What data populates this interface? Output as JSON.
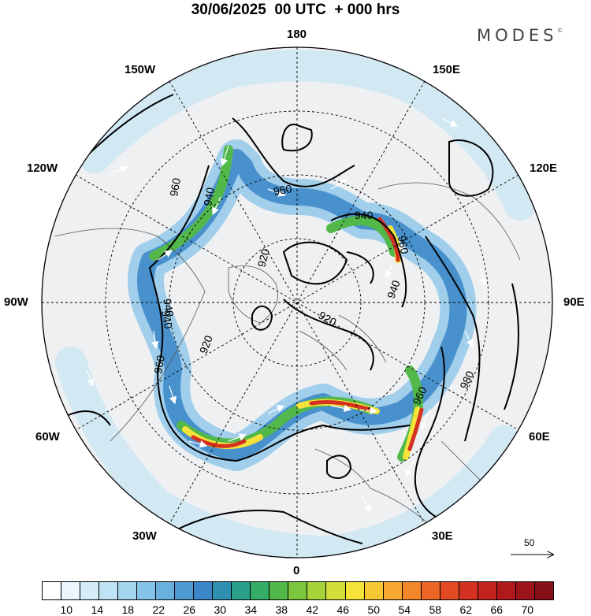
{
  "title": "30/06/2025  00 UTC  + 000 hrs",
  "brand": "MODES",
  "brand_mark": "©",
  "longitude_labels": {
    "top": "180",
    "bottom": "0",
    "left": "90W",
    "right": "90E",
    "upper_left_1": "150W",
    "upper_left_2": "120W",
    "upper_right_1": "150E",
    "upper_right_2": "120E",
    "lower_left_1": "60W",
    "lower_left_2": "30W",
    "lower_right_1": "60E",
    "lower_right_2": "30E"
  },
  "contour_labels": [
    "960",
    "940",
    "960",
    "940",
    "960",
    "920",
    "940",
    "920",
    "940",
    "920",
    "960",
    "940",
    "960",
    "980"
  ],
  "scale_vector_value": "50",
  "colorbar": {
    "ticks": [
      "10",
      "14",
      "18",
      "22",
      "26",
      "30",
      "34",
      "38",
      "42",
      "46",
      "50",
      "54",
      "58",
      "62",
      "66",
      "70"
    ],
    "colors": [
      "#ffffff",
      "#eaf6fc",
      "#d4edf8",
      "#bfe3f4",
      "#a4d5ef",
      "#86c3e8",
      "#6ab0de",
      "#4f9ad3",
      "#3a86c8",
      "#2f8fb0",
      "#2aa08a",
      "#34ad68",
      "#52b84a",
      "#7cc63e",
      "#a6d33a",
      "#d2df38",
      "#f5e33a",
      "#f6c834",
      "#f5a72f",
      "#f1862a",
      "#ec6626",
      "#e14a23",
      "#d33221",
      "#c2231f",
      "#b0191c",
      "#9c131a",
      "#86101a"
    ]
  }
}
